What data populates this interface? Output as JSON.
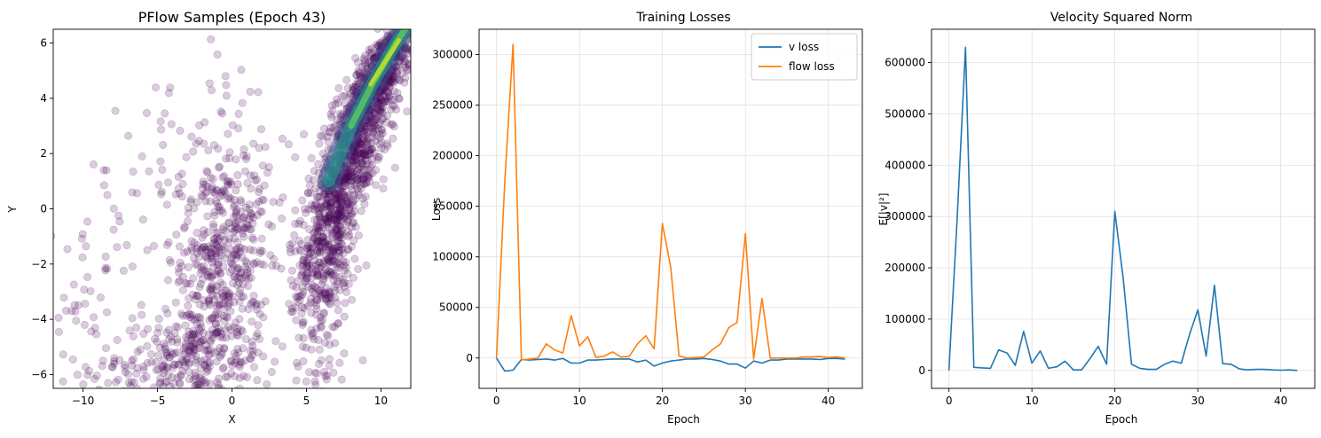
{
  "colors": {
    "v_loss": "#1f77b4",
    "flow_loss": "#ff7f0e",
    "norm": "#1f77b4",
    "scatter_fill": "#440154",
    "density_low": "#3b528b",
    "density_mid": "#21918c",
    "density_high": "#5ec962",
    "density_peak": "#bddf26",
    "grid": "#e0e0e0"
  },
  "chart_data": [
    {
      "type": "scatter",
      "title": "PFlow Samples (Epoch 43)",
      "xlabel": "X",
      "ylabel": "Y",
      "xlim": [
        -12,
        12
      ],
      "ylim": [
        -6.5,
        6.5
      ],
      "xticks": [
        -10,
        -5,
        0,
        5,
        10
      ],
      "xtick_labels": [
        "−10",
        "−5",
        "0",
        "5",
        "10"
      ],
      "yticks": [
        -6,
        -4,
        -2,
        0,
        2,
        4,
        6
      ],
      "ytick_labels": [
        "−6",
        "−4",
        "−2",
        "0",
        "2",
        "4",
        "6"
      ],
      "grid": false,
      "scatter_clusters": [
        {
          "cx": 8.5,
          "cy": 2.5,
          "sx": 1.8,
          "sy": 2.4,
          "corr": 0.85,
          "n": 900
        },
        {
          "cx": 10.0,
          "cy": 5.0,
          "sx": 1.3,
          "sy": 1.0,
          "corr": 0.8,
          "n": 280
        },
        {
          "cx": 6.5,
          "cy": -1.5,
          "sx": 1.1,
          "sy": 2.2,
          "corr": 0.4,
          "n": 380
        },
        {
          "cx": -0.5,
          "cy": -2.0,
          "sx": 1.5,
          "sy": 2.2,
          "corr": 0.3,
          "n": 420
        },
        {
          "cx": -3.0,
          "cy": -5.5,
          "sx": 3.0,
          "sy": 0.8,
          "corr": 0.3,
          "n": 260
        },
        {
          "cx": -2.5,
          "cy": 0.0,
          "sx": 3.5,
          "sy": 3.0,
          "corr": 0.2,
          "n": 160
        },
        {
          "cx": -9.5,
          "cy": -3.0,
          "sx": 1.5,
          "sy": 2.5,
          "corr": 0.2,
          "n": 50
        }
      ],
      "density_band": [
        {
          "x": 6.5,
          "y": 1.0
        },
        {
          "x": 8.0,
          "y": 3.0
        },
        {
          "x": 9.5,
          "y": 4.6
        },
        {
          "x": 11.0,
          "y": 6.0
        },
        {
          "x": 12.0,
          "y": 6.8
        }
      ]
    },
    {
      "type": "line",
      "title": "Training Losses",
      "xlabel": "Epoch",
      "ylabel": "Loss",
      "xlim": [
        -2.1,
        44.1
      ],
      "ylim": [
        -30000,
        325000
      ],
      "xticks": [
        0,
        10,
        20,
        30,
        40
      ],
      "xtick_labels": [
        "0",
        "10",
        "20",
        "30",
        "40"
      ],
      "yticks": [
        0,
        50000,
        100000,
        150000,
        200000,
        250000,
        300000
      ],
      "ytick_labels": [
        "0",
        "50000",
        "100000",
        "150000",
        "200000",
        "250000",
        "300000"
      ],
      "grid": true,
      "legend": "top-right",
      "x": [
        0,
        1,
        2,
        3,
        4,
        5,
        6,
        7,
        8,
        9,
        10,
        11,
        12,
        13,
        14,
        15,
        16,
        17,
        18,
        19,
        20,
        21,
        22,
        23,
        24,
        25,
        26,
        27,
        28,
        29,
        30,
        31,
        32,
        33,
        34,
        35,
        36,
        37,
        38,
        39,
        40,
        41,
        42
      ],
      "series": [
        {
          "name": "v loss",
          "color_key": "v_loss",
          "values": [
            0,
            -13000,
            -12000,
            -1500,
            -2000,
            -1500,
            -1000,
            -2000,
            -500,
            -5000,
            -5000,
            -2000,
            -2000,
            -1500,
            -1000,
            -1000,
            -1000,
            -4000,
            -2000,
            -8000,
            -5000,
            -3000,
            -2000,
            -1000,
            -1000,
            -500,
            -1500,
            -3000,
            -6000,
            -6000,
            -10000,
            -3000,
            -5000,
            -2000,
            -2000,
            -1000,
            -1000,
            -1000,
            -1000,
            -1500,
            -500,
            -500,
            -1000
          ]
        },
        {
          "name": "flow loss",
          "color_key": "flow_loss",
          "values": [
            0,
            175000,
            310000,
            -2000,
            -1000,
            0,
            14000,
            8000,
            5000,
            42000,
            12000,
            21000,
            500,
            2000,
            6000,
            1000,
            1500,
            14000,
            22000,
            9000,
            133000,
            90000,
            2000,
            0,
            500,
            1000,
            8000,
            14000,
            30000,
            35000,
            123000,
            -1000,
            59000,
            0,
            0,
            0,
            0,
            1000,
            1000,
            1500,
            500,
            1000,
            0
          ]
        }
      ]
    },
    {
      "type": "line",
      "title": "Velocity Squared Norm",
      "xlabel": "Epoch",
      "ylabel": "E[|v|²]",
      "xlim": [
        -2.1,
        44.1
      ],
      "ylim": [
        -35000,
        665000
      ],
      "xticks": [
        0,
        10,
        20,
        30,
        40
      ],
      "xtick_labels": [
        "0",
        "10",
        "20",
        "30",
        "40"
      ],
      "yticks": [
        0,
        100000,
        200000,
        300000,
        400000,
        500000,
        600000
      ],
      "ytick_labels": [
        "0",
        "100000",
        "200000",
        "300000",
        "400000",
        "500000",
        "600000"
      ],
      "grid": true,
      "x": [
        0,
        1,
        2,
        3,
        4,
        5,
        6,
        7,
        8,
        9,
        10,
        11,
        12,
        13,
        14,
        15,
        16,
        17,
        18,
        19,
        20,
        21,
        22,
        23,
        24,
        25,
        26,
        27,
        28,
        29,
        30,
        31,
        32,
        33,
        34,
        35,
        36,
        37,
        38,
        39,
        40,
        41,
        42
      ],
      "series": [
        {
          "color_key": "norm",
          "values": [
            0,
            300000,
            630000,
            6000,
            5000,
            4000,
            40000,
            34000,
            10000,
            76000,
            14000,
            38000,
            4000,
            7000,
            18000,
            1000,
            1000,
            23000,
            47000,
            12000,
            310000,
            180000,
            12000,
            4000,
            2000,
            2000,
            12000,
            18000,
            14000,
            70000,
            118000,
            28000,
            166000,
            13000,
            12000,
            3000,
            1000,
            2000,
            2000,
            1000,
            500,
            1000,
            0
          ]
        }
      ]
    }
  ]
}
